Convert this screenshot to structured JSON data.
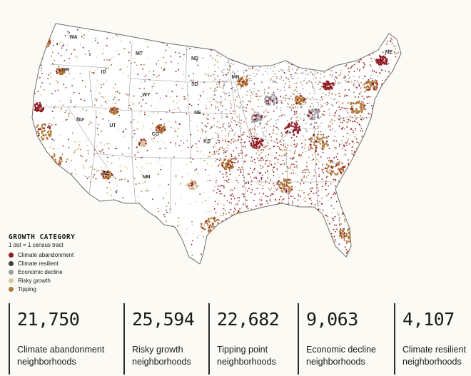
{
  "map": {
    "state_labels": [
      {
        "code": "WA"
      },
      {
        "code": "OR"
      },
      {
        "code": "ID"
      },
      {
        "code": "MT"
      },
      {
        "code": "WY"
      },
      {
        "code": "ND"
      },
      {
        "code": "MN"
      },
      {
        "code": "SD"
      },
      {
        "code": "NE"
      },
      {
        "code": "NV"
      },
      {
        "code": "UT"
      },
      {
        "code": "CO"
      },
      {
        "code": "AZ"
      },
      {
        "code": "NM"
      },
      {
        "code": "KS"
      },
      {
        "code": "ME"
      }
    ]
  },
  "legend": {
    "title": "GROWTH CATEGORY",
    "subtitle": "1 dot = 1 census tract",
    "items": [
      {
        "label": "Climate abandonment",
        "color": "#8e1b22"
      },
      {
        "label": "Climate resilient",
        "color": "#3e3f45"
      },
      {
        "label": "Economic decline",
        "color": "#9c9ca6"
      },
      {
        "label": "Risky growth",
        "color": "#d9c79d"
      },
      {
        "label": "Tipping",
        "color": "#b07a38"
      }
    ]
  },
  "stats": [
    {
      "value": "21,750",
      "label_line1": "Climate abandonment",
      "label_line2": "neighborhoods"
    },
    {
      "value": "25,594",
      "label_line1": "Risky growth",
      "label_line2": "neighborhoods"
    },
    {
      "value": "22,682",
      "label_line1": "Tipping point",
      "label_line2": "neighborhoods"
    },
    {
      "value": "9,063",
      "label_line1": "Economic decline",
      "label_line2": "neighborhoods"
    },
    {
      "value": "4,107",
      "label_line1": "Climate resilient",
      "label_line2": "neighborhoods"
    }
  ]
}
